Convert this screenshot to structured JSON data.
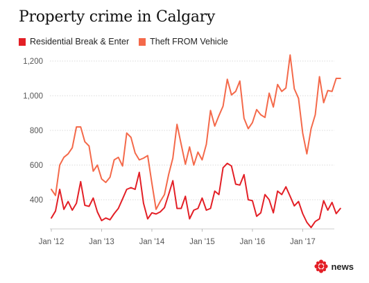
{
  "title": "Property crime in Calgary",
  "legend": [
    {
      "label": "Residential Break & Enter",
      "color": "#e31f26"
    },
    {
      "label": "Theft FROM Vehicle",
      "color": "#f4694a"
    }
  ],
  "brand": {
    "name": "news",
    "icon": "cbc-gem-icon"
  },
  "chart_data": {
    "type": "line",
    "title": "Property crime in Calgary",
    "xlabel": "",
    "ylabel": "",
    "x_start": "2012-01",
    "x_ticks": [
      "Jan '12",
      "Jan '13",
      "Jan '14",
      "Jan '15",
      "Jan '16",
      "Jan '17"
    ],
    "y_ticks": [
      400,
      600,
      800,
      1000,
      1200
    ],
    "y_tick_labels": [
      "400",
      "600",
      "800",
      "1,000",
      "1,200"
    ],
    "ylim": [
      200,
      1250
    ],
    "grid": "horizontal",
    "legend_position": "top-left",
    "series": [
      {
        "name": "Residential Break & Enter",
        "color": "#e31f26",
        "values": [
          295,
          335,
          460,
          345,
          390,
          340,
          380,
          505,
          368,
          362,
          410,
          330,
          280,
          295,
          285,
          320,
          350,
          405,
          460,
          470,
          460,
          558,
          380,
          290,
          325,
          318,
          330,
          355,
          430,
          510,
          350,
          350,
          420,
          290,
          340,
          350,
          410,
          340,
          350,
          450,
          430,
          585,
          610,
          595,
          490,
          485,
          545,
          400,
          395,
          305,
          325,
          430,
          400,
          325,
          450,
          430,
          475,
          420,
          365,
          390,
          320,
          270,
          240,
          275,
          290,
          395,
          340,
          385,
          320,
          350
        ]
      },
      {
        "name": "Theft FROM Vehicle",
        "color": "#f4694a",
        "values": [
          460,
          425,
          600,
          645,
          665,
          700,
          820,
          820,
          735,
          710,
          565,
          600,
          520,
          500,
          530,
          630,
          645,
          595,
          785,
          760,
          670,
          630,
          640,
          655,
          495,
          345,
          390,
          430,
          545,
          640,
          835,
          720,
          605,
          705,
          600,
          675,
          630,
          720,
          915,
          825,
          885,
          940,
          1095,
          1005,
          1025,
          1085,
          870,
          810,
          845,
          920,
          890,
          875,
          1015,
          935,
          1065,
          1025,
          1045,
          1235,
          1040,
          985,
          785,
          665,
          810,
          890,
          1110,
          960,
          1030,
          1025,
          1100,
          1100
        ]
      }
    ]
  }
}
